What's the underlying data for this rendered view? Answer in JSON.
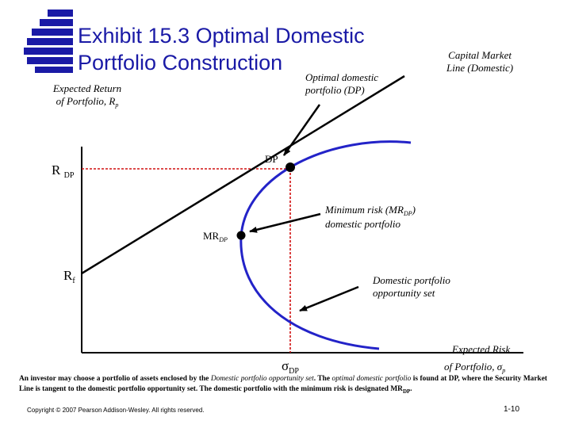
{
  "title": {
    "line1": "Exhibit 15.3  Optimal Domestic",
    "line2": "Portfolio Construction"
  },
  "y_axis": {
    "label_line1": "Expected Return",
    "label_line2": "of Portfolio, R",
    "label_sub": "p"
  },
  "x_axis": {
    "label_line1": "Expected Risk",
    "label_line2": "of Portfolio, σ",
    "label_sub": "p"
  },
  "ticks": {
    "r_dp": "R",
    "r_dp_sub": "DP",
    "r_f": "R",
    "r_f_sub": "f",
    "sigma_dp": "σ",
    "sigma_dp_sub": "DP"
  },
  "points": {
    "dp": "DP",
    "mrdp": "MR",
    "mrdp_sub": "DP"
  },
  "annotations": {
    "optimal_line1": "Optimal domestic",
    "optimal_line2": "portfolio (DP)",
    "cml_line1": "Capital Market",
    "cml_line2": "Line (Domestic)",
    "minrisk_line1_a": "Minimum risk (MR",
    "minrisk_line1_sub": "DP",
    "minrisk_line1_b": ")",
    "minrisk_line2": "domestic portfolio",
    "opp_line1": "Domestic portfolio",
    "opp_line2": "opportunity set"
  },
  "caption": {
    "part1": "An investor may choose a portfolio of assets enclosed by the",
    "part2": "Domestic portfolio opportunity set",
    "part3": ". The",
    "part4": "optimal domestic portfolio",
    "part5": "is found at DP, where the Security Market Line is tangent to the domestic portfolio opportunity set. The domestic portfolio with the minimum risk is designated MR",
    "part5_sub": "DP",
    "part6": "."
  },
  "footer": {
    "copyright": "Copyright © 2007 Pearson Addison-Wesley. All rights reserved.",
    "page": "1-10"
  },
  "colors": {
    "title": "#1a1aa6",
    "frontier": "#2323c8",
    "guide_lines": "#d01010",
    "logo": "#1a1aa6"
  }
}
